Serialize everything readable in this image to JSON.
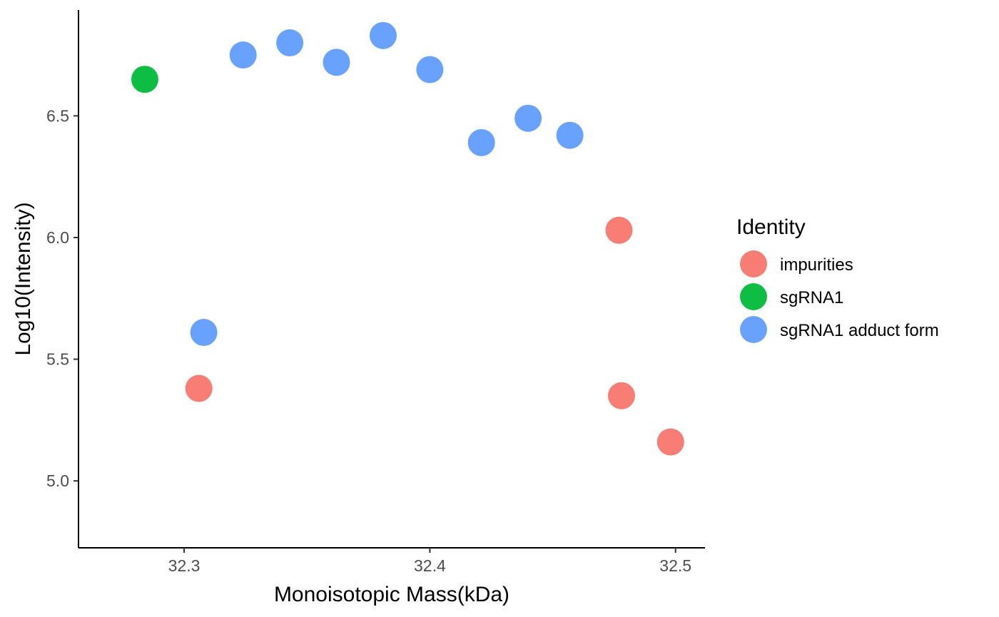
{
  "chart_data": {
    "type": "scatter",
    "xlabel": "Monoisotopic Mass(kDa)",
    "ylabel": "Log10(Intensity)",
    "xlim": [
      32.257,
      32.512
    ],
    "ylim": [
      4.725,
      6.935
    ],
    "x_ticks": [
      32.3,
      32.4,
      32.5
    ],
    "x_tick_labels": [
      "32.3",
      "32.4",
      "32.5"
    ],
    "y_ticks": [
      5.0,
      5.5,
      6.0,
      6.5
    ],
    "y_tick_labels": [
      "5.0",
      "5.5",
      "6.0",
      "6.5"
    ],
    "grid": false,
    "legend": {
      "title": "Identity",
      "placement": "right"
    },
    "series": [
      {
        "name": "impurities",
        "color": "#F8766D",
        "points": [
          {
            "x": 32.306,
            "y": 5.38
          },
          {
            "x": 32.477,
            "y": 6.03
          },
          {
            "x": 32.478,
            "y": 5.35
          },
          {
            "x": 32.498,
            "y": 5.16
          }
        ]
      },
      {
        "name": "sgRNA1",
        "color": "#00BA38",
        "points": [
          {
            "x": 32.284,
            "y": 6.65
          }
        ]
      },
      {
        "name": "sgRNA1 adduct form",
        "color": "#619CFF",
        "points": [
          {
            "x": 32.308,
            "y": 5.61
          },
          {
            "x": 32.324,
            "y": 6.75
          },
          {
            "x": 32.343,
            "y": 6.8
          },
          {
            "x": 32.362,
            "y": 6.72
          },
          {
            "x": 32.381,
            "y": 6.83
          },
          {
            "x": 32.4,
            "y": 6.69
          },
          {
            "x": 32.421,
            "y": 6.39
          },
          {
            "x": 32.44,
            "y": 6.49
          },
          {
            "x": 32.457,
            "y": 6.42
          }
        ]
      }
    ]
  }
}
